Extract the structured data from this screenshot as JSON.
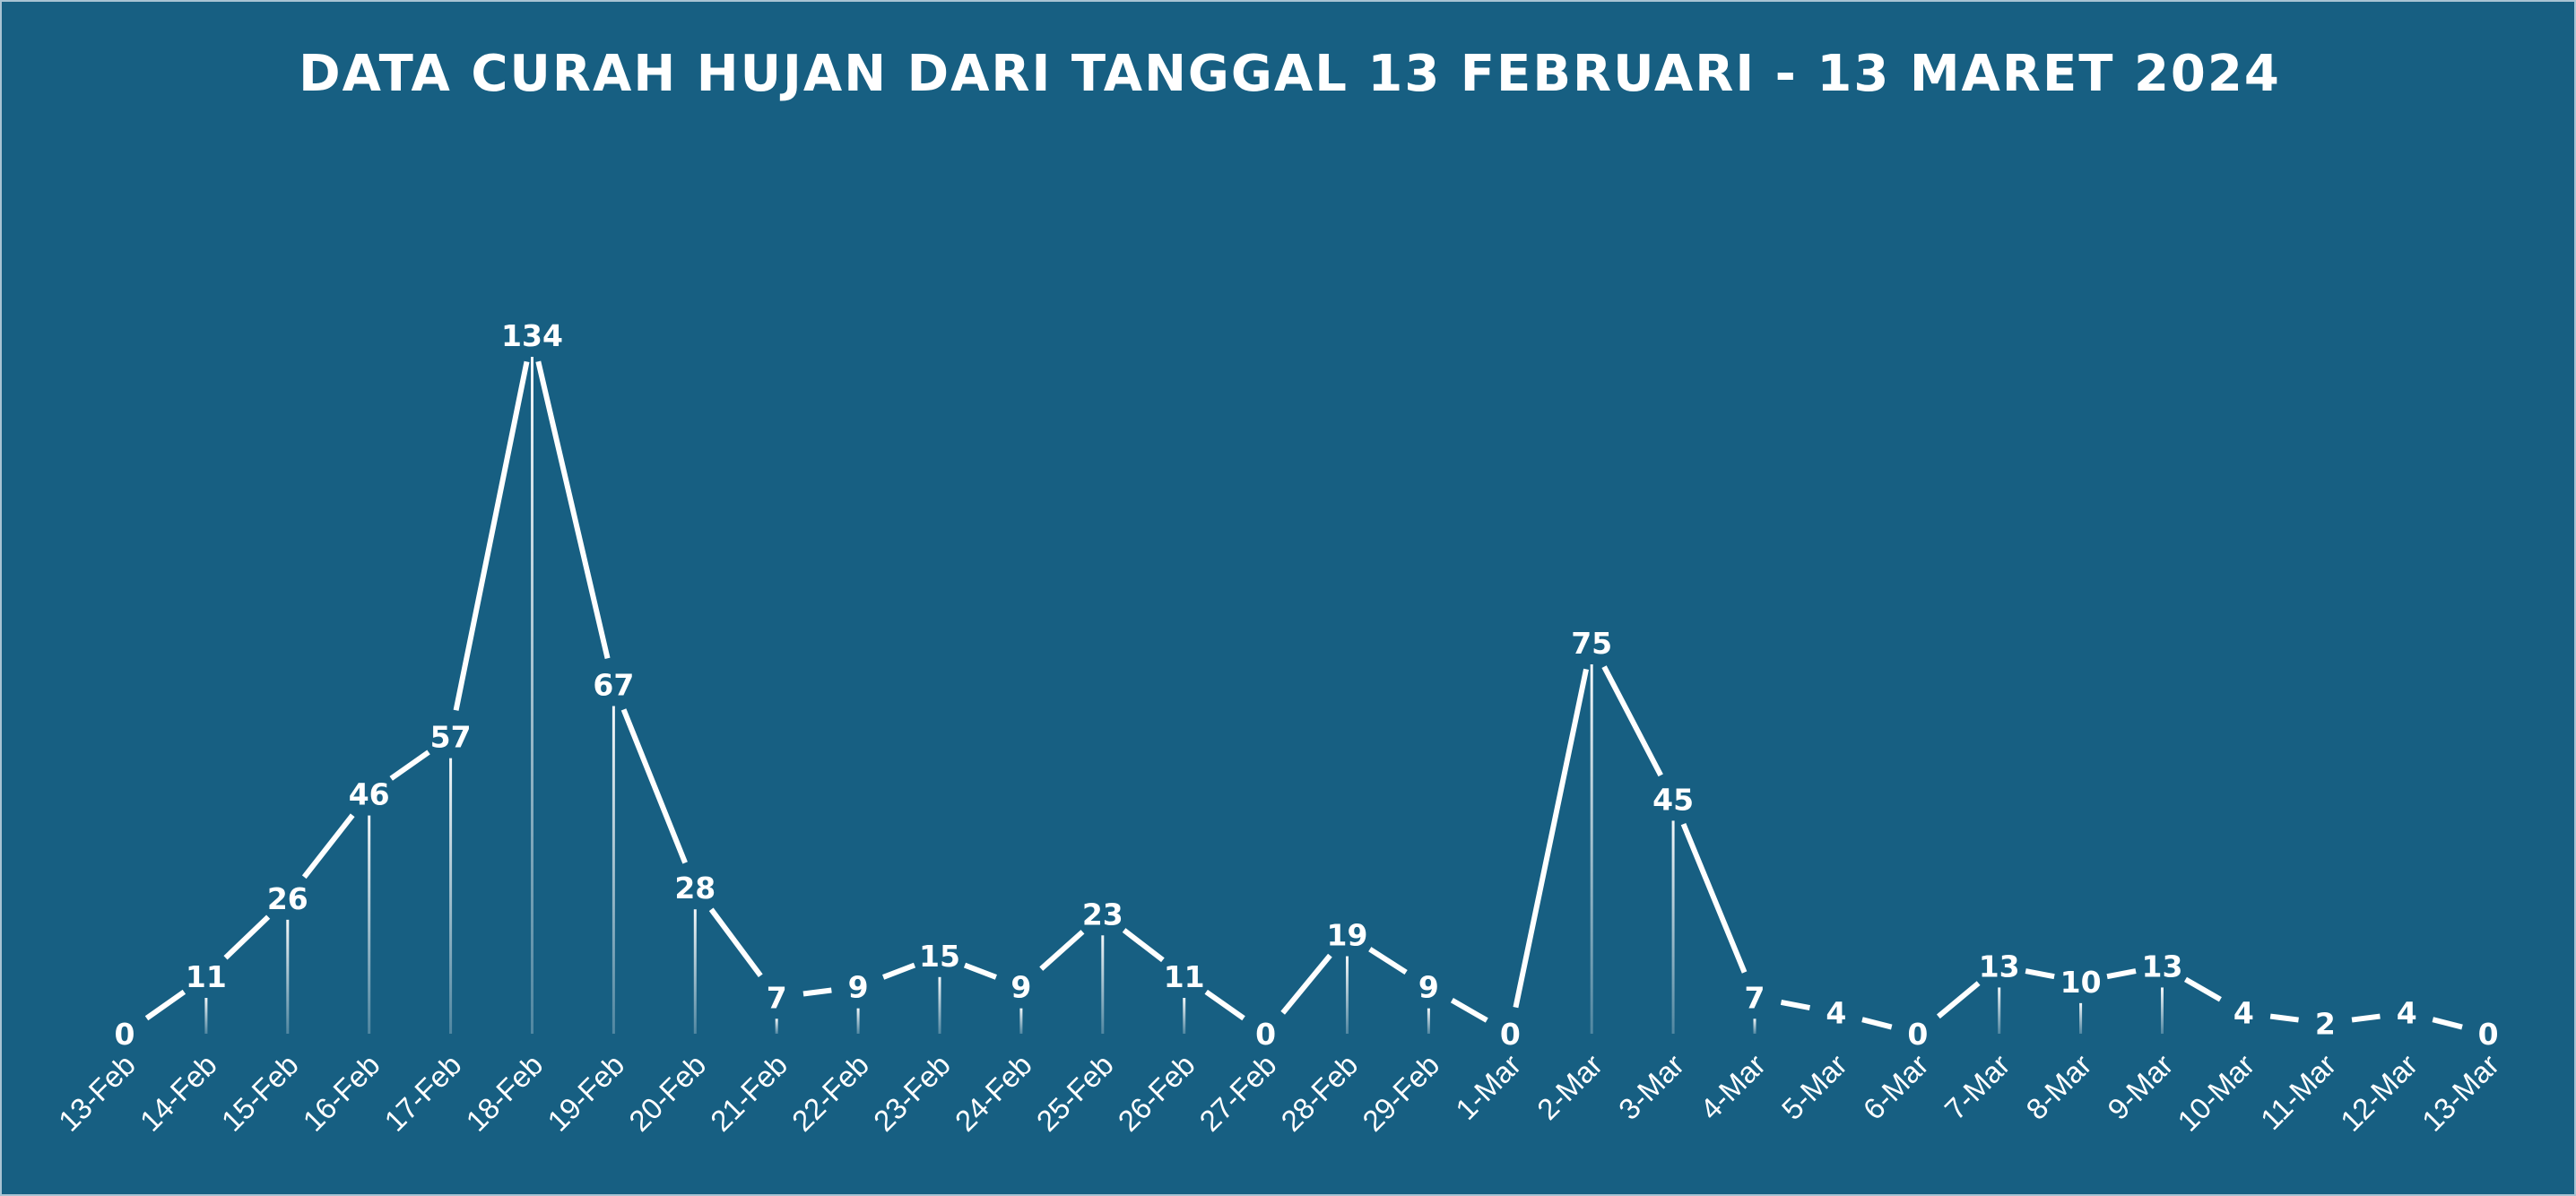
{
  "colors": {
    "background": "#175f82",
    "line": "#ffffff",
    "text": "#ffffff"
  },
  "chart_data": {
    "type": "line",
    "title": "DATA CURAH HUJAN DARI TANGGAL 13 FEBRUARI - 13 MARET 2024",
    "xlabel": "",
    "ylabel": "",
    "categories": [
      "13-Feb",
      "14-Feb",
      "15-Feb",
      "16-Feb",
      "17-Feb",
      "18-Feb",
      "19-Feb",
      "20-Feb",
      "21-Feb",
      "22-Feb",
      "23-Feb",
      "24-Feb",
      "25-Feb",
      "26-Feb",
      "27-Feb",
      "28-Feb",
      "29-Feb",
      "1-Mar",
      "2-Mar",
      "3-Mar",
      "4-Mar",
      "5-Mar",
      "6-Mar",
      "7-Mar",
      "8-Mar",
      "9-Mar",
      "10-Mar",
      "11-Mar",
      "12-Mar",
      "13-Mar"
    ],
    "values": [
      0,
      11,
      26,
      46,
      57,
      134,
      67,
      28,
      7,
      9,
      15,
      9,
      23,
      11,
      0,
      19,
      9,
      0,
      75,
      45,
      7,
      4,
      0,
      13,
      10,
      13,
      4,
      2,
      4,
      0
    ],
    "ylim": [
      0,
      134
    ],
    "grid": false,
    "legend": "none",
    "data_labels": true
  }
}
